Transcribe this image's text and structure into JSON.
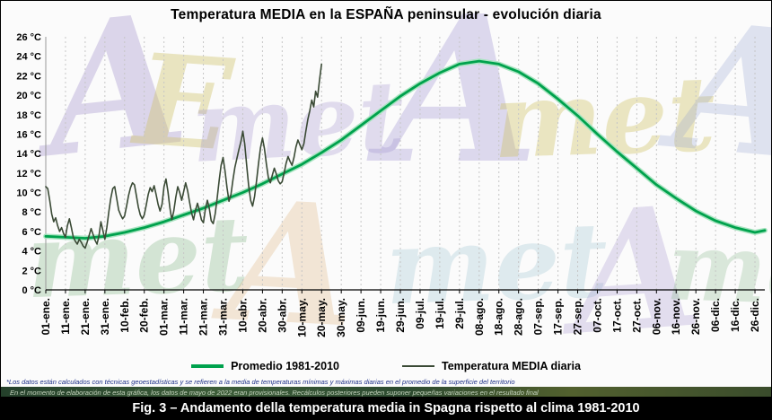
{
  "title": "Temperatura MEDIA en la ESPAÑA peninsular - evolución diaria",
  "legend": {
    "items": [
      {
        "label": "Promedio 1981-2010",
        "color": "#00a24d"
      },
      {
        "label": "Temperatura MEDIA diaria",
        "color": "#3a4a35"
      }
    ]
  },
  "footnotes": {
    "line1": "*Los datos están calculados con técnicas geoestadísticas y se refieren a la media de temperaturas mínimas y máximas diarias en el promedio de la superficie del territorio",
    "line2": "En el momento de elaboración de esta gráfica, los datos de mayo de 2022 eran provisionales. Recálculos posteriores pueden suponer pequeñas variaciones en el resultado final"
  },
  "caption": "Fig. 3 – Andamento della temperatura media in Spagna rispetto al clima 1981-2010",
  "watermark": {
    "letters": [
      "A",
      "E",
      "met",
      "A",
      "met",
      "A",
      "met",
      "A",
      "met",
      "A",
      "met"
    ]
  },
  "chart_data": {
    "type": "line",
    "title": "Temperatura MEDIA en la ESPAÑA peninsular - evolución diaria",
    "xlabel": "",
    "ylabel": "°C",
    "ylim": [
      0,
      26
    ],
    "ytick_step": 2,
    "y_unit": "°C",
    "grid": "vertical-dashed",
    "legend_position": "bottom",
    "x_tick_labels": [
      "01-ene.",
      "11-ene.",
      "21-ene.",
      "31-ene.",
      "10-feb.",
      "20-feb.",
      "01-mar.",
      "11-mar.",
      "21-mar.",
      "31-mar.",
      "10-abr.",
      "20-abr.",
      "30-abr.",
      "10-may.",
      "20-may.",
      "30-may.",
      "09-jun.",
      "19-jun.",
      "29-jun.",
      "09-jul.",
      "19-jul.",
      "29-jul.",
      "08-ago.",
      "18-ago.",
      "28-ago.",
      "07-sep.",
      "17-sep.",
      "27-sep.",
      "07-oct.",
      "17-oct.",
      "27-oct.",
      "06-nov.",
      "16-nov.",
      "26-nov.",
      "06-dic.",
      "16-dic.",
      "26-dic."
    ],
    "series": [
      {
        "name": "Promedio 1981-2010",
        "color": "#00a24d",
        "halo": "#a8e4c0",
        "width": 2.8,
        "x_days": [
          1,
          11,
          21,
          31,
          41,
          51,
          61,
          71,
          81,
          91,
          101,
          111,
          121,
          131,
          141,
          151,
          161,
          171,
          181,
          191,
          201,
          211,
          221,
          231,
          241,
          251,
          261,
          271,
          281,
          291,
          301,
          311,
          321,
          331,
          341,
          351,
          361,
          366
        ],
        "values": [
          5.5,
          5.4,
          5.3,
          5.5,
          5.9,
          6.4,
          7.0,
          7.7,
          8.4,
          9.2,
          10.0,
          10.9,
          11.9,
          12.9,
          14.1,
          15.4,
          16.9,
          18.4,
          19.9,
          21.2,
          22.3,
          23.2,
          23.5,
          23.2,
          22.4,
          21.2,
          19.6,
          17.9,
          16.0,
          14.2,
          12.5,
          10.8,
          9.4,
          8.1,
          7.1,
          6.4,
          5.9,
          6.1
        ]
      },
      {
        "name": "Temperatura MEDIA diaria",
        "color": "#3a4a35",
        "width": 1.6,
        "start_day": 1,
        "day_step": 1,
        "values": [
          10.6,
          10.4,
          9.2,
          7.8,
          7.0,
          7.4,
          6.6,
          6.0,
          6.4,
          5.8,
          5.4,
          6.6,
          7.3,
          6.4,
          5.4,
          5.0,
          4.7,
          5.2,
          4.9,
          4.5,
          4.3,
          4.9,
          5.6,
          6.3,
          5.7,
          5.1,
          4.7,
          5.6,
          7.0,
          6.1,
          5.2,
          6.4,
          8.0,
          9.4,
          10.4,
          10.6,
          9.4,
          8.2,
          7.7,
          7.3,
          7.6,
          8.6,
          9.7,
          10.5,
          11.0,
          10.8,
          9.7,
          8.5,
          7.7,
          7.3,
          7.7,
          8.7,
          9.8,
          10.5,
          10.1,
          10.7,
          9.8,
          8.8,
          8.1,
          8.8,
          10.6,
          11.4,
          10.1,
          8.4,
          7.2,
          8.1,
          9.5,
          10.6,
          10.0,
          9.2,
          10.1,
          11.0,
          10.2,
          9.0,
          7.9,
          7.2,
          8.2,
          8.9,
          8.1,
          7.2,
          6.9,
          8.3,
          9.2,
          8.4,
          7.1,
          6.8,
          7.8,
          9.4,
          11.2,
          12.8,
          13.6,
          12.2,
          10.5,
          9.1,
          9.8,
          11.3,
          12.6,
          13.5,
          14.4,
          15.2,
          16.3,
          15.0,
          12.8,
          10.7,
          9.2,
          8.6,
          9.6,
          11.2,
          13.0,
          14.6,
          15.6,
          14.5,
          12.9,
          11.5,
          11.0,
          11.8,
          12.5,
          11.9,
          11.2,
          10.9,
          11.1,
          12.0,
          13.0,
          13.7,
          13.2,
          12.8,
          13.6,
          14.7,
          15.4,
          14.9,
          14.4,
          15.0,
          16.3,
          17.5,
          18.4,
          19.5,
          18.8,
          20.4,
          19.8,
          21.6,
          23.2
        ]
      }
    ]
  }
}
